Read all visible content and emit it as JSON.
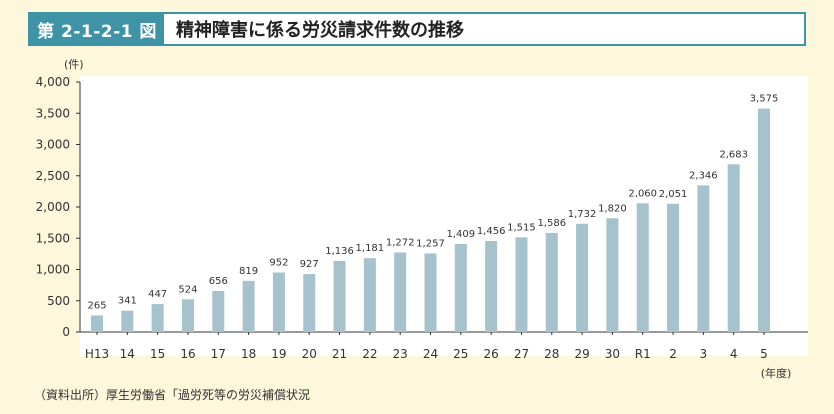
{
  "figure": {
    "number": "第 2-1-2-1 図",
    "title": "精神障害に係る労災請求件数の推移"
  },
  "source_note": "（資料出所）厚生労働省「過労死等の労災補償状況",
  "colors": {
    "bar": "#a6c2cc",
    "accent": "#3f93a6",
    "background": "#fdf7dc"
  },
  "chart_data": {
    "type": "bar",
    "y_unit": "(件)",
    "x_unit": "(年度)",
    "ylim": [
      0,
      4000
    ],
    "yticks": [
      "0",
      "500",
      "1,000",
      "1,500",
      "2,000",
      "2,500",
      "3,000",
      "3,500",
      "4,000"
    ],
    "ytick_values": [
      0,
      500,
      1000,
      1500,
      2000,
      2500,
      3000,
      3500,
      4000
    ],
    "grid": false,
    "categories": [
      "H13",
      "14",
      "15",
      "16",
      "17",
      "18",
      "19",
      "20",
      "21",
      "22",
      "23",
      "24",
      "25",
      "26",
      "27",
      "28",
      "29",
      "30",
      "R1",
      "2",
      "3",
      "4",
      "5"
    ],
    "values": [
      265,
      341,
      447,
      524,
      656,
      819,
      952,
      927,
      1136,
      1181,
      1272,
      1257,
      1409,
      1456,
      1515,
      1586,
      1732,
      1820,
      2060,
      2051,
      2346,
      2683,
      3575
    ],
    "value_labels": [
      "265",
      "341",
      "447",
      "524",
      "656",
      "819",
      "952",
      "927",
      "1,136",
      "1,181",
      "1,272",
      "1,257",
      "1,409",
      "1,456",
      "1,515",
      "1,586",
      "1,732",
      "1,820",
      "2,060",
      "2,051",
      "2,346",
      "2,683",
      "3,575"
    ]
  }
}
